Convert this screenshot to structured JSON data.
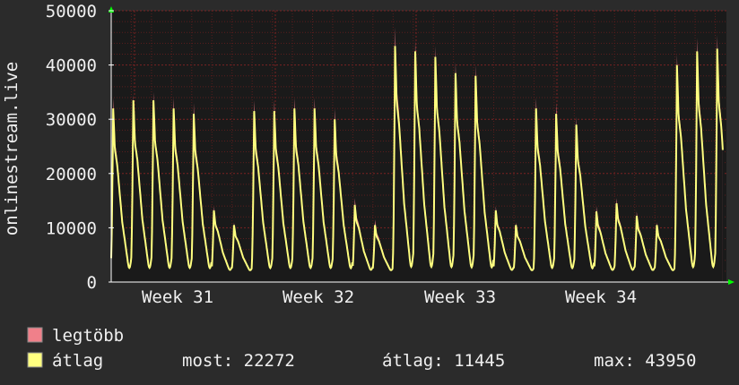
{
  "chart_data": {
    "type": "area",
    "ylabel": "onlinestream.live",
    "ylim": [
      0,
      50000
    ],
    "y_ticks": [
      "0",
      "10000",
      "20000",
      "30000",
      "40000",
      "50000"
    ],
    "x_ticks": [
      "Week 31",
      "Week 32",
      "Week 33",
      "Week 34"
    ],
    "grid": true,
    "daily_peaks": {
      "max": [
        34000,
        34500,
        35000,
        34000,
        33000,
        14000,
        11000,
        33500,
        33500,
        34000,
        34000,
        32000,
        15500,
        11500,
        47000,
        44500,
        43500,
        40500,
        40000,
        14000,
        11000,
        34000,
        33000,
        30500,
        14000,
        15500,
        13000,
        11000,
        42000,
        45000,
        45500
      ],
      "avg": [
        32000,
        33500,
        33500,
        32000,
        31000,
        13200,
        10500,
        31500,
        31500,
        32000,
        32000,
        30000,
        14200,
        10500,
        43500,
        42500,
        41500,
        38500,
        38000,
        13200,
        10500,
        32000,
        31000,
        29000,
        13000,
        14500,
        12200,
        10500,
        40000,
        42500,
        43000
      ]
    },
    "series": [
      {
        "name": "legtöbb",
        "color": "#f0808a"
      },
      {
        "name": "átlag",
        "color": "#ffff80"
      }
    ]
  },
  "legend": {
    "max_label": "legtöbb",
    "avg_label": "átlag",
    "most_text": "most: 22272",
    "atlag_text": "átlag: 11445",
    "max_text": "max: 43950"
  },
  "colors": {
    "background": "#2b2b2b",
    "plot_background": "#1a1a1a",
    "grid": "#5a1d1d",
    "axis": "#ffffff",
    "arrow": "#00ff00"
  }
}
